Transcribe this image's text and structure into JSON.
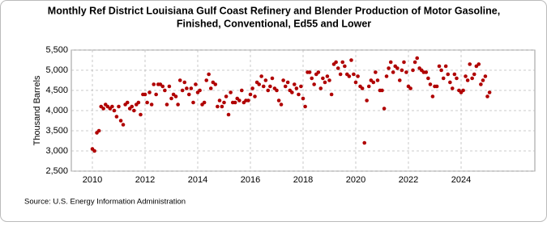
{
  "chart_data": {
    "type": "scatter",
    "title": [
      "Monthly Ref District Louisiana Gulf Coast Refinery and Blender Production of Motor Gasoline,",
      "Finished, Conventional, Ed55 and Lower"
    ],
    "y_label": "Thousand Barrels",
    "source": "Source: U.S. Energy Information Administration",
    "color": "#b00000",
    "grid": true,
    "xlim": [
      2009.2,
      2026.8
    ],
    "xticks": [
      2010,
      2012,
      2014,
      2016,
      2018,
      2020,
      2022,
      2024
    ],
    "ylim": [
      2500,
      5500
    ],
    "yticks": [
      {
        "value": 2500,
        "label": "2,500"
      },
      {
        "value": 3000,
        "label": "3,000"
      },
      {
        "value": 3500,
        "label": "3,500"
      },
      {
        "value": 4000,
        "label": "4,000"
      },
      {
        "value": 4500,
        "label": "4,500"
      },
      {
        "value": 5000,
        "label": "5,000"
      },
      {
        "value": 5500,
        "label": "5,500"
      }
    ],
    "x": [
      2010,
      2010.08,
      2010.17,
      2010.25,
      2010.33,
      2010.42,
      2010.5,
      2010.58,
      2010.67,
      2010.75,
      2010.83,
      2010.92,
      2011,
      2011.08,
      2011.17,
      2011.25,
      2011.33,
      2011.42,
      2011.5,
      2011.58,
      2011.67,
      2011.75,
      2011.83,
      2011.92,
      2012,
      2012.08,
      2012.17,
      2012.25,
      2012.33,
      2012.42,
      2012.5,
      2012.58,
      2012.67,
      2012.75,
      2012.83,
      2012.92,
      2013,
      2013.08,
      2013.17,
      2013.25,
      2013.33,
      2013.42,
      2013.5,
      2013.58,
      2013.67,
      2013.75,
      2013.83,
      2013.92,
      2014,
      2014.08,
      2014.17,
      2014.25,
      2014.33,
      2014.42,
      2014.5,
      2014.58,
      2014.67,
      2014.75,
      2014.83,
      2014.92,
      2015,
      2015.08,
      2015.17,
      2015.25,
      2015.33,
      2015.42,
      2015.5,
      2015.58,
      2015.67,
      2015.75,
      2015.83,
      2015.92,
      2016,
      2016.08,
      2016.17,
      2016.25,
      2016.33,
      2016.42,
      2016.5,
      2016.58,
      2016.67,
      2016.75,
      2016.83,
      2016.92,
      2017,
      2017.08,
      2017.17,
      2017.25,
      2017.33,
      2017.42,
      2017.5,
      2017.58,
      2017.67,
      2017.75,
      2017.83,
      2017.92,
      2018,
      2018.08,
      2018.17,
      2018.25,
      2018.33,
      2018.42,
      2018.5,
      2018.58,
      2018.67,
      2018.75,
      2018.83,
      2018.92,
      2019,
      2019.08,
      2019.17,
      2019.25,
      2019.33,
      2019.42,
      2019.5,
      2019.58,
      2019.67,
      2019.75,
      2019.83,
      2019.92,
      2020,
      2020.08,
      2020.17,
      2020.25,
      2020.33,
      2020.42,
      2020.5,
      2020.58,
      2020.67,
      2020.75,
      2020.83,
      2020.92,
      2021,
      2021.08,
      2021.17,
      2021.25,
      2021.33,
      2021.42,
      2021.5,
      2021.58,
      2021.67,
      2021.75,
      2021.83,
      2021.92,
      2022,
      2022.08,
      2022.17,
      2022.25,
      2022.33,
      2022.42,
      2022.5,
      2022.58,
      2022.67,
      2022.75,
      2022.83,
      2022.92,
      2023,
      2023.08,
      2023.17,
      2023.25,
      2023.33,
      2023.42,
      2023.5,
      2023.58,
      2023.67,
      2023.75,
      2023.83,
      2023.92,
      2024,
      2024.08,
      2024.17,
      2024.25,
      2024.33,
      2024.42,
      2024.5,
      2024.58,
      2024.67,
      2024.75,
      2024.83,
      2024.92,
      2025,
      2025.08
    ],
    "values": [
      3050,
      3000,
      3450,
      3500,
      4100,
      4050,
      4150,
      4100,
      4050,
      4100,
      4000,
      3850,
      4100,
      3750,
      3650,
      4150,
      4200,
      4050,
      4100,
      4000,
      4150,
      4200,
      3900,
      4400,
      4400,
      4200,
      4450,
      4150,
      4650,
      4400,
      4650,
      4650,
      4600,
      4500,
      4150,
      4600,
      4300,
      4400,
      4350,
      4150,
      4750,
      4500,
      4700,
      4550,
      4400,
      4550,
      4200,
      4650,
      4450,
      4500,
      4150,
      4200,
      4750,
      4900,
      4550,
      4700,
      4650,
      4100,
      4250,
      4100,
      4200,
      4350,
      3900,
      4450,
      4200,
      4200,
      4300,
      4250,
      4500,
      4200,
      4250,
      4250,
      4400,
      4550,
      4350,
      4700,
      4650,
      4850,
      4600,
      4750,
      4500,
      4600,
      4800,
      4550,
      4500,
      4250,
      4150,
      4750,
      4600,
      4700,
      4500,
      4450,
      4650,
      4550,
      4400,
      4600,
      4300,
      4100,
      4950,
      4950,
      4800,
      4650,
      4900,
      4950,
      4550,
      4800,
      4700,
      4850,
      4750,
      4400,
      5150,
      5200,
      5050,
      4900,
      5200,
      5100,
      4900,
      4850,
      5250,
      4900,
      4700,
      4850,
      4600,
      4550,
      3200,
      4250,
      4600,
      4750,
      4700,
      4950,
      4750,
      4500,
      4500,
      4050,
      4850,
      5050,
      5200,
      4950,
      5100,
      5050,
      4750,
      5000,
      5200,
      4950,
      4600,
      4550,
      5000,
      5200,
      5300,
      5050,
      5000,
      4950,
      4950,
      4800,
      4650,
      4350,
      4600,
      4600,
      5100,
      5000,
      4800,
      5100,
      4900,
      4700,
      4550,
      4900,
      4800,
      4500,
      4450,
      4500,
      4850,
      4750,
      5150,
      4800,
      4900,
      5100,
      5150,
      4650,
      4750,
      4850,
      4350,
      4450
    ]
  }
}
